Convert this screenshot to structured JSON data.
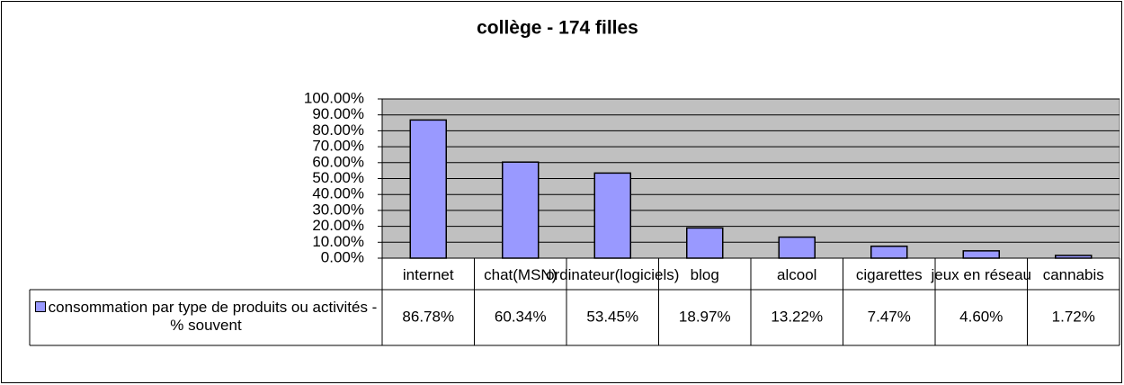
{
  "chart_data": {
    "type": "bar",
    "title": "collège - 174 filles",
    "categories": [
      "internet",
      "chat(MSN)",
      "ordinateur(logiciels)",
      "blog",
      "alcool",
      "cigarettes",
      "jeux en réseau",
      "cannabis"
    ],
    "series": [
      {
        "name": "consommation par type de produits ou activités - % souvent",
        "color": "#9999ff",
        "values": [
          86.78,
          60.34,
          53.45,
          18.97,
          13.22,
          7.47,
          4.6,
          1.72
        ],
        "value_labels": [
          "86.78%",
          "60.34%",
          "53.45%",
          "18.97%",
          "13.22%",
          "7.47%",
          "4.60%",
          "1.72%"
        ]
      }
    ],
    "ylim": [
      0,
      100
    ],
    "yticks": [
      {
        "value": 0,
        "label": "0.00%"
      },
      {
        "value": 10,
        "label": "10.00%"
      },
      {
        "value": 20,
        "label": "20.00%"
      },
      {
        "value": 30,
        "label": "30.00%"
      },
      {
        "value": 40,
        "label": "40.00%"
      },
      {
        "value": 50,
        "label": "50.00%"
      },
      {
        "value": 60,
        "label": "60.00%"
      },
      {
        "value": 70,
        "label": "70.00%"
      },
      {
        "value": 80,
        "label": "80.00%"
      },
      {
        "value": 90,
        "label": "90.00%"
      },
      {
        "value": 100,
        "label": "100.00%"
      }
    ],
    "grid": true
  }
}
